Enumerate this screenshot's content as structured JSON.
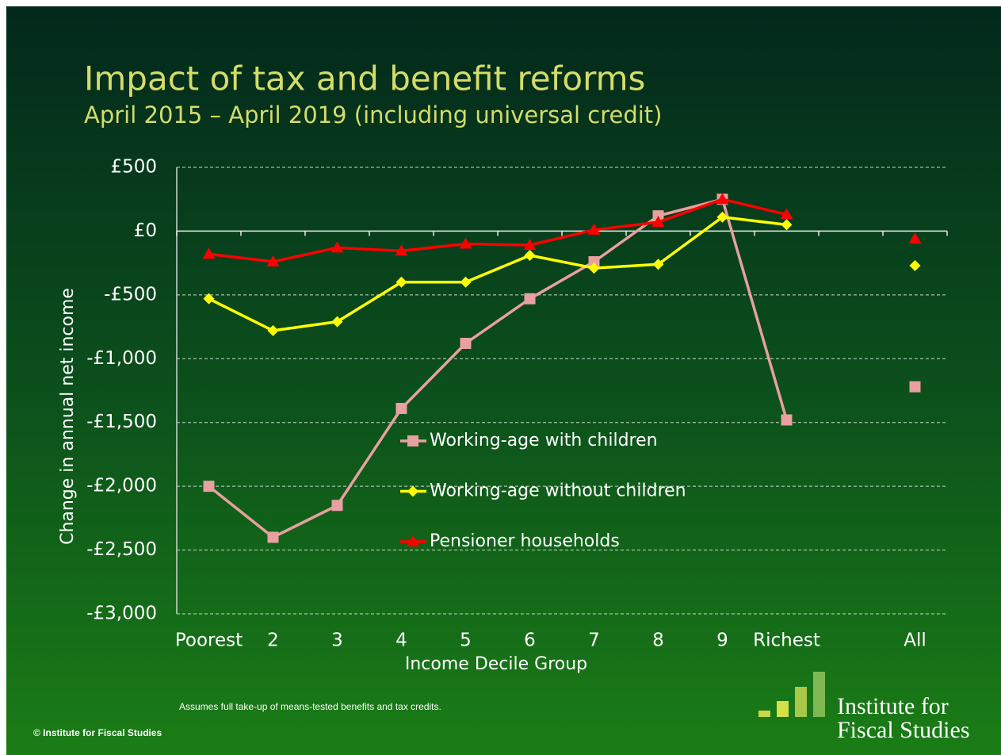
{
  "chart_data": {
    "type": "line",
    "title": "Impact of tax and benefit reforms",
    "subtitle": "April 2015 – April 2019 (including universal credit)",
    "y_label": "Change in annual net income",
    "x_label": "Income Decile Group",
    "categories": [
      "Poorest",
      "2",
      "3",
      "4",
      "5",
      "6",
      "7",
      "8",
      "9",
      "Richest",
      null,
      "All"
    ],
    "series": [
      {
        "name": "Working-age with children",
        "color": "#e8a0a0",
        "marker": "square",
        "values": [
          -2000,
          -2400,
          -2150,
          -1390,
          -880,
          -530,
          -240,
          120,
          250,
          -1480,
          null,
          -1220
        ]
      },
      {
        "name": "Working-age without children",
        "color": "#ffff00",
        "marker": "diamond",
        "values": [
          -530,
          -780,
          -710,
          -400,
          -400,
          -190,
          -290,
          -260,
          110,
          50,
          null,
          -270
        ]
      },
      {
        "name": "Pensioner households",
        "color": "#ff0000",
        "marker": "triangle",
        "values": [
          -180,
          -240,
          -130,
          -155,
          -100,
          -110,
          10,
          70,
          250,
          130,
          null,
          -60
        ]
      }
    ],
    "ylim": [
      -3000,
      500
    ],
    "yticks": [
      {
        "value": -3000,
        "label": "-£3,000"
      },
      {
        "value": -2500,
        "label": "-£2,500"
      },
      {
        "value": -2000,
        "label": "-£2,000"
      },
      {
        "value": -1500,
        "label": "-£1,500"
      },
      {
        "value": -1000,
        "label": "-£1,000"
      },
      {
        "value": -500,
        "label": "-£500"
      },
      {
        "value": 0,
        "label": "£0"
      },
      {
        "value": 500,
        "label": "£500"
      }
    ],
    "grid": true,
    "footnote": "Assumes full take-up of means-tested benefits and tax credits.",
    "copyright": "© Institute for Fiscal Studies",
    "logo": [
      "Institute for",
      "Fiscal Studies"
    ]
  }
}
